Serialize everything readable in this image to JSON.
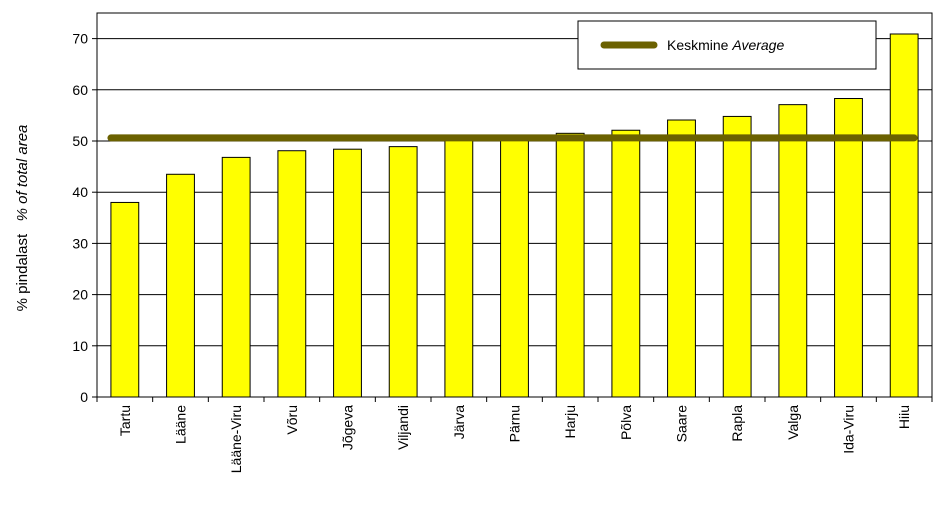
{
  "chart_data": {
    "type": "bar",
    "categories": [
      "Tartu",
      "Lääne",
      "Lääne-Viru",
      "Võru",
      "Jõgeva",
      "Viljandi",
      "Järva",
      "Pärnu",
      "Harju",
      "Põlva",
      "Saare",
      "Rapla",
      "Valga",
      "Ida-Viru",
      "Hiiu"
    ],
    "series": [
      {
        "values": [
          38.0,
          43.5,
          46.8,
          48.1,
          48.4,
          48.9,
          50.2,
          50.4,
          51.5,
          52.1,
          54.1,
          54.8,
          57.1,
          58.3,
          70.9
        ]
      }
    ],
    "average": {
      "name": "Keskmine",
      "name_italic": "Average",
      "value": 50.6
    },
    "ylabel": "% pindalast",
    "ylabel_italic": "% of total area",
    "ylim": [
      0,
      75
    ],
    "yticks": [
      0,
      10,
      20,
      30,
      40,
      50,
      60,
      70
    ],
    "legend_position": "top-right",
    "grid": "horizontal",
    "colors": {
      "bar": "#ffff00",
      "bar_edge": "#000000",
      "average_line": "#6b6100"
    }
  }
}
